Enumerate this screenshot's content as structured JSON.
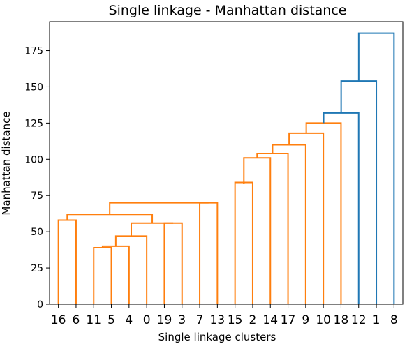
{
  "chart_data": {
    "type": "dendrogram",
    "title": "Single linkage - Manhattan distance",
    "xlabel": "Single linkage clusters",
    "ylabel": "Manhattan distance",
    "ylim": [
      0,
      195
    ],
    "yticks": [
      0,
      25,
      50,
      75,
      100,
      125,
      150,
      175
    ],
    "leaves": [
      "16",
      "6",
      "11",
      "5",
      "4",
      "0",
      "19",
      "3",
      "7",
      "13",
      "15",
      "2",
      "14",
      "17",
      "9",
      "10",
      "18",
      "12",
      "1",
      "8"
    ],
    "colors": {
      "cluster": "#ff7f0e",
      "above_threshold": "#1f77b4"
    },
    "merges": [
      {
        "left": "16",
        "right": "6",
        "height": 58,
        "color": "cluster"
      },
      {
        "left": "11",
        "right": "5",
        "height": 39,
        "color": "cluster"
      },
      {
        "left": "11-5",
        "right": "4",
        "height": 40,
        "color": "cluster"
      },
      {
        "left": "11-5-4",
        "right": "0",
        "height": 47,
        "color": "cluster"
      },
      {
        "left": "19",
        "right": "3",
        "height": 56,
        "color": "cluster"
      },
      {
        "left": "11-5-4-0",
        "right": "19-3",
        "height": 56,
        "color": "cluster"
      },
      {
        "left": "16-6",
        "right": "11-5-4-0-19-3",
        "height": 62,
        "color": "cluster"
      },
      {
        "left": "7",
        "right": "13",
        "height": 70,
        "color": "cluster"
      },
      {
        "left": "16-6-11-5-4-0-19-3",
        "right": "7-13",
        "height": 70,
        "color": "cluster"
      },
      {
        "left": "15",
        "right": "2",
        "height": 84,
        "color": "cluster"
      },
      {
        "left": "cluster-A",
        "right": "15-2",
        "height": 83,
        "color": "cluster"
      },
      {
        "left": "cluster-B",
        "right": "14",
        "height": 101,
        "color": "cluster"
      },
      {
        "left": "cluster-C",
        "right": "17",
        "height": 104,
        "color": "cluster"
      },
      {
        "left": "cluster-D",
        "right": "9",
        "height": 110,
        "color": "cluster"
      },
      {
        "left": "cluster-E",
        "right": "10",
        "height": 118,
        "color": "cluster"
      },
      {
        "left": "cluster-F",
        "right": "18",
        "height": 125,
        "color": "cluster"
      },
      {
        "left": "cluster-G",
        "right": "12",
        "height": 132,
        "color": "above_threshold"
      },
      {
        "left": "cluster-H",
        "right": "1",
        "height": 154,
        "color": "above_threshold"
      },
      {
        "left": "cluster-I",
        "right": "8",
        "height": 187,
        "color": "above_threshold"
      }
    ],
    "grid": false
  }
}
